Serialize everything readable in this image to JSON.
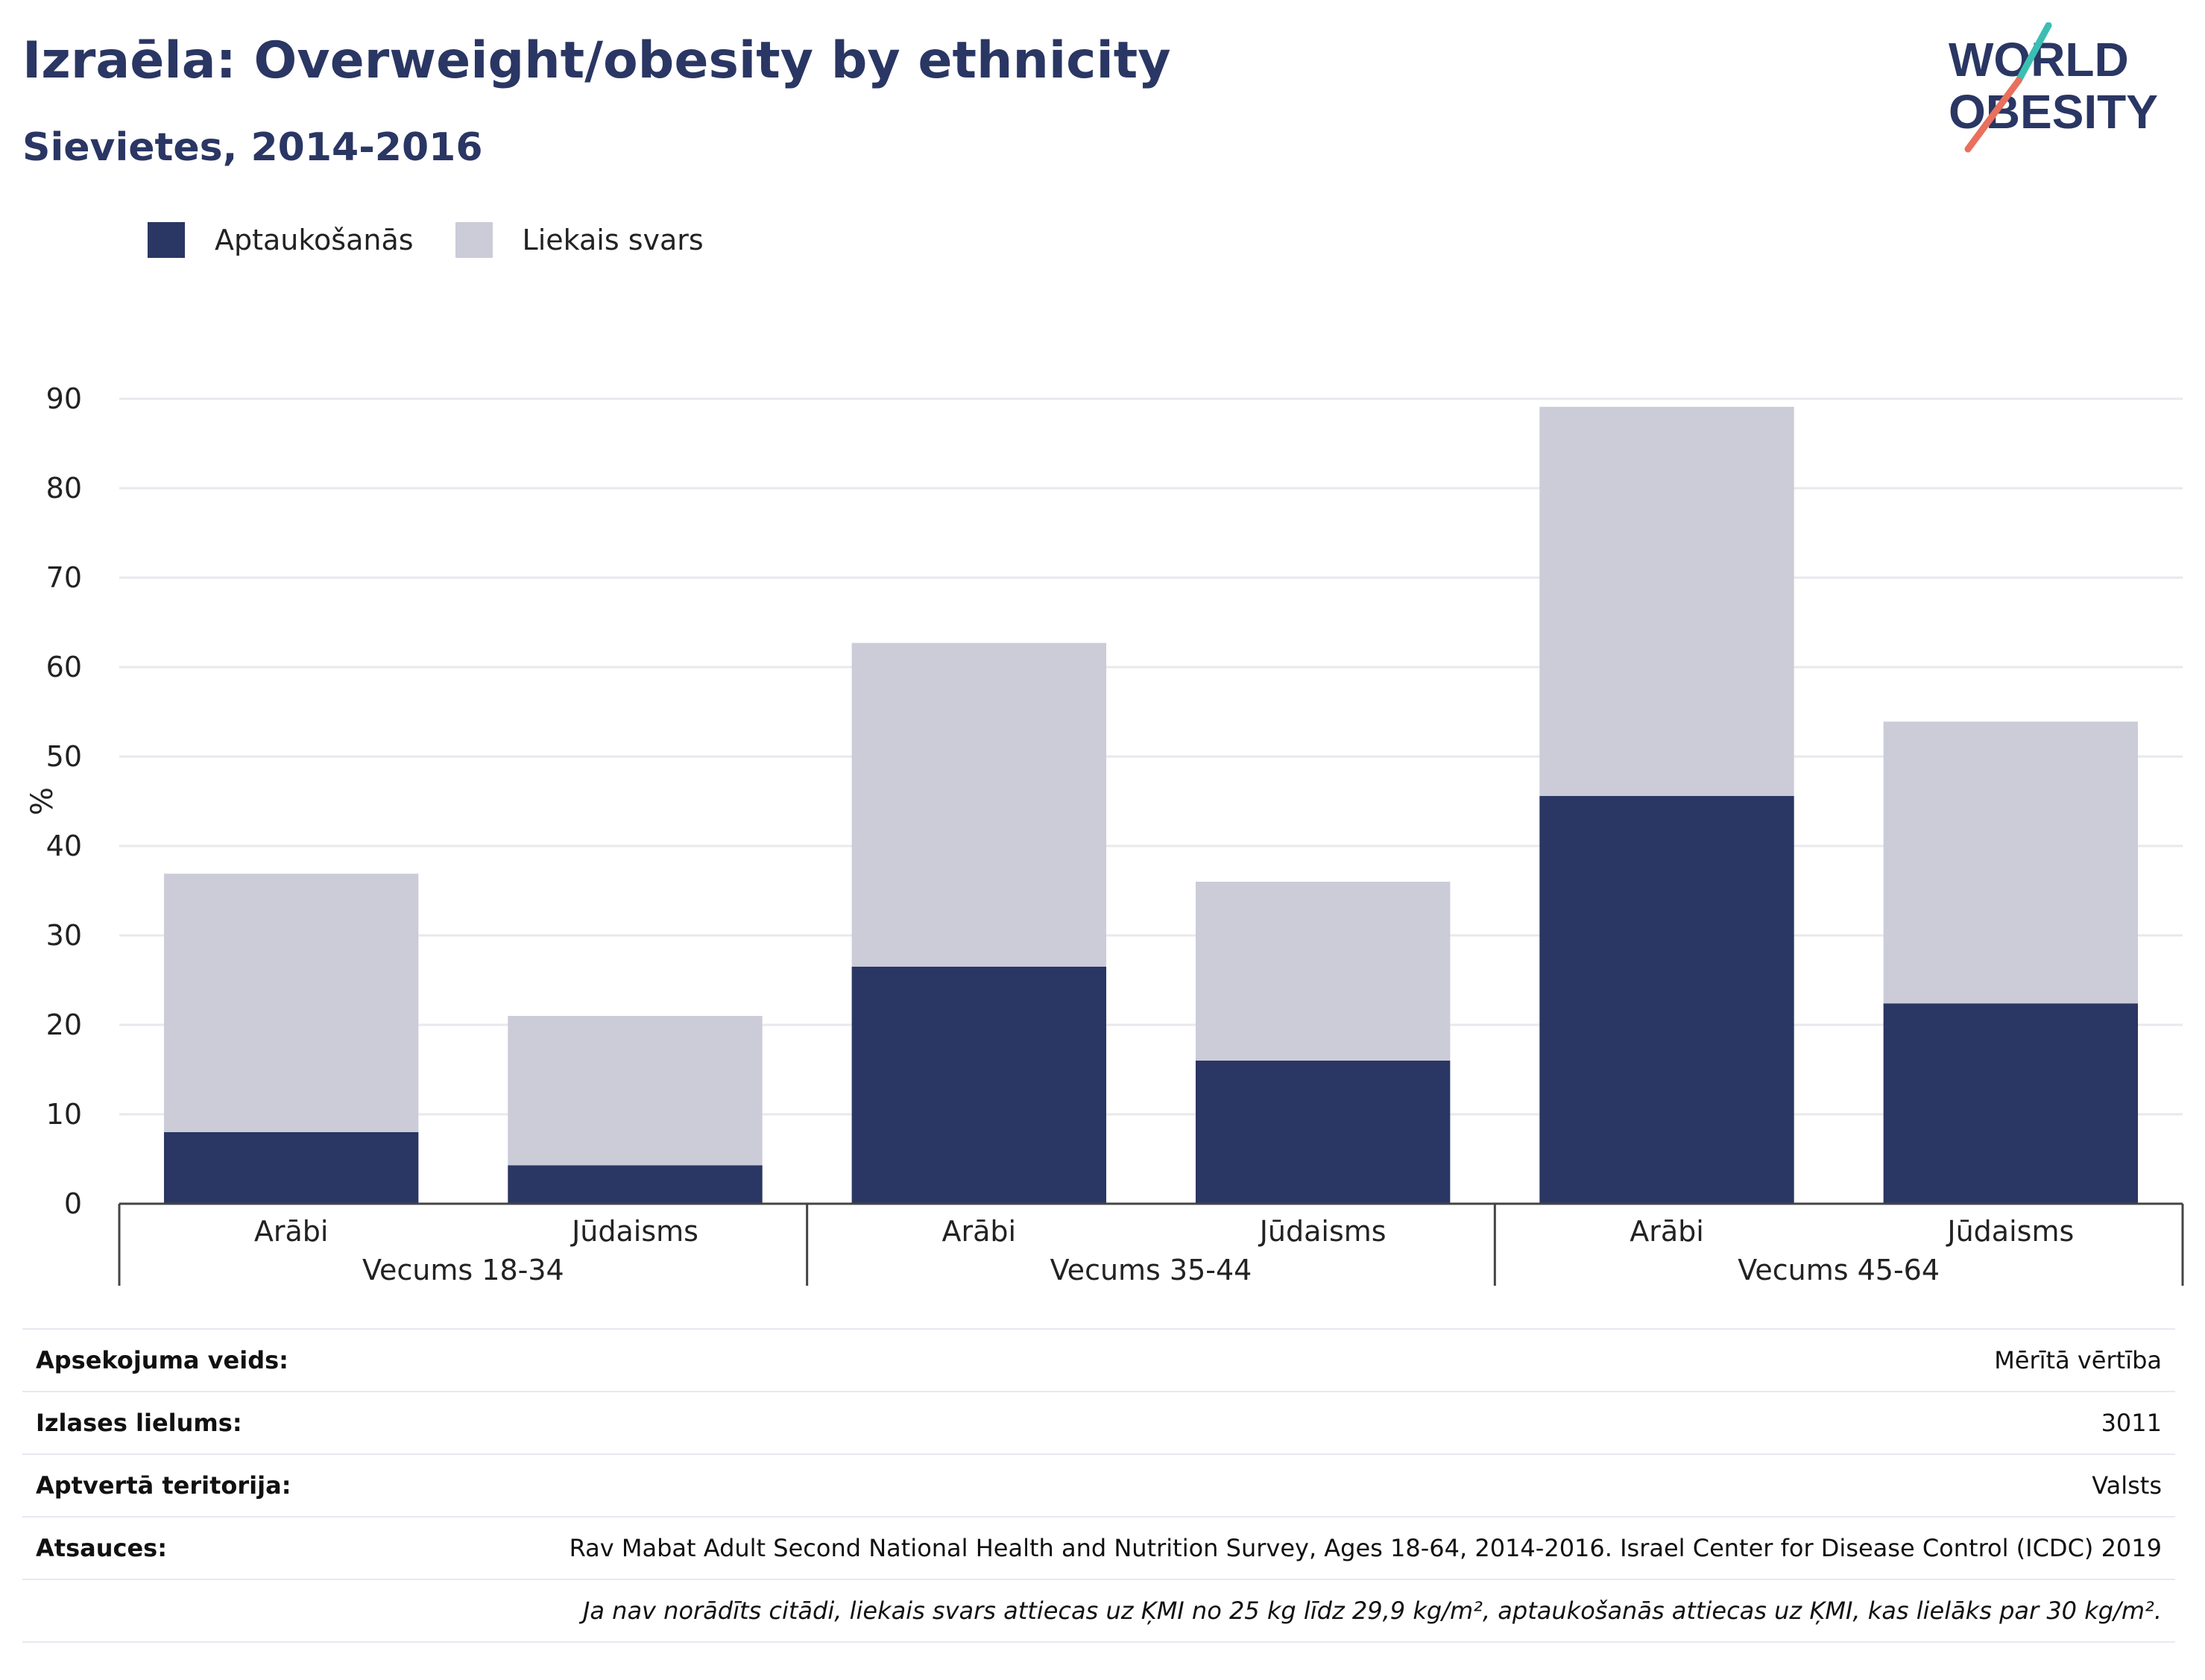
{
  "header": {
    "title": "Izraēla: Overweight/obesity by ethnicity",
    "subtitle": "Sievietes, 2014-2016"
  },
  "logo": {
    "line1": "WORLD",
    "line2": "OBESITY"
  },
  "colors": {
    "obesity": "#2a3663",
    "overweight": "#cbccd8",
    "text": "#2a3663",
    "grid": "#e8e8ee",
    "logo_teal": "#3bbfb2",
    "logo_coral": "#e8705d"
  },
  "chart_data": {
    "type": "bar",
    "stacked": true,
    "ylabel": "%",
    "ylim": [
      0,
      90
    ],
    "yticks": [
      0,
      10,
      20,
      30,
      40,
      50,
      60,
      70,
      80,
      90
    ],
    "categories": [
      "Arābi",
      "Jūdaisms",
      "Arābi",
      "Jūdaisms",
      "Arābi",
      "Jūdaisms"
    ],
    "groups": [
      "Vecums 18-34",
      "Vecums 35-44",
      "Vecums 45-64"
    ],
    "series": [
      {
        "name": "Aptaukošanās",
        "values": [
          8.0,
          4.3,
          26.5,
          16.0,
          45.6,
          22.4
        ]
      },
      {
        "name": "Liekais svars",
        "values": [
          28.9,
          16.7,
          36.2,
          20.0,
          43.5,
          31.5
        ]
      }
    ],
    "legend_position": "top-left",
    "grid": true
  },
  "meta": {
    "rows": [
      {
        "key": "Apsekojuma veids:",
        "value": "Mērītā vērtība"
      },
      {
        "key": "Izlases lielums:",
        "value": "3011"
      },
      {
        "key": "Aptvertā teritorija:",
        "value": "Valsts"
      },
      {
        "key": "Atsauces:",
        "value": "Rav Mabat Adult Second National Health and Nutrition Survey, Ages 18-64, 2014-2016. Israel Center for Disease Control (ICDC) 2019"
      }
    ],
    "note": "Ja nav norādīts citādi, liekais svars attiecas uz ĶMI no 25 kg līdz 29,9 kg/m², aptaukošanās attiecas uz ĶMI, kas lielāks par 30 kg/m²."
  }
}
